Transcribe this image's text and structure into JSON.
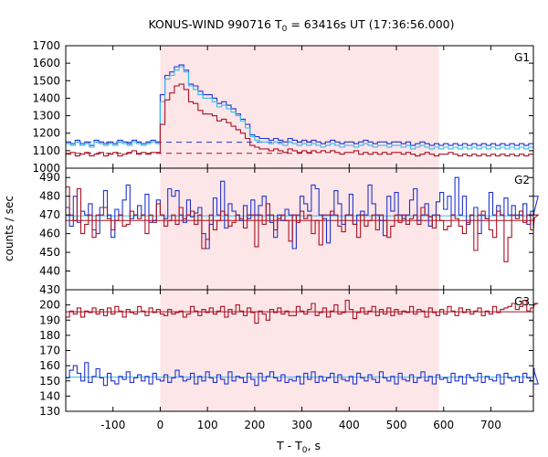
{
  "figure": {
    "title_parts": [
      "KONUS-WIND 990716 T",
      "0",
      " = 63416s UT (17:36:56.000)"
    ],
    "ylabel": "counts / sec",
    "xlabel_parts": [
      "T - T",
      "0",
      ", s"
    ]
  },
  "chart_data": {
    "type": "line",
    "title": "KONUS-WIND 990716 T0 = 63416s UT (17:36:56.000)",
    "xlabel": "T - T0, s",
    "ylabel": "counts / sec",
    "xlim": [
      -200,
      790
    ],
    "x_ticks": [
      -100,
      0,
      100,
      200,
      300,
      400,
      500,
      600,
      700
    ],
    "x_tick_labels": [
      "-100",
      "0",
      "100",
      "200",
      "300",
      "400",
      "500",
      "600",
      "700"
    ],
    "shaded_interval": [
      0,
      590
    ],
    "colors": {
      "red": "#aa1122",
      "blue": "#2233cc",
      "cyan": "#33bbee",
      "shade": "#fde6e8"
    },
    "panels": [
      {
        "label": "G1",
        "ylim": [
          1000,
          1700
        ],
        "y_ticks": [
          1000,
          1100,
          1200,
          1300,
          1400,
          1500,
          1600,
          1700
        ],
        "y_tick_labels": [
          "1000",
          "1100",
          "1200",
          "1300",
          "1400",
          "1500",
          "1600",
          "1700"
        ],
        "step_series": [
          {
            "color": "blue",
            "bin": 10,
            "x0": -200,
            "values": [
              1150,
              1140,
              1160,
              1140,
              1150,
              1130,
              1160,
              1150,
              1140,
              1150,
              1140,
              1160,
              1150,
              1140,
              1160,
              1150,
              1140,
              1150,
              1160,
              1150,
              1420,
              1530,
              1550,
              1580,
              1590,
              1560,
              1480,
              1470,
              1440,
              1420,
              1420,
              1400,
              1370,
              1380,
              1360,
              1340,
              1310,
              1280,
              1250,
              1190,
              1180,
              1170,
              1170,
              1160,
              1170,
              1160,
              1150,
              1170,
              1160,
              1150,
              1160,
              1150,
              1160,
              1150,
              1140,
              1150,
              1160,
              1150,
              1140,
              1150,
              1150,
              1140,
              1150,
              1160,
              1150,
              1140,
              1150,
              1150,
              1140,
              1150,
              1150,
              1140,
              1150,
              1130,
              1140,
              1150,
              1140,
              1130,
              1140,
              1130,
              1140,
              1130,
              1140,
              1130,
              1140,
              1130,
              1140,
              1130,
              1140,
              1130,
              1140,
              1130,
              1140,
              1130,
              1140,
              1130,
              1140,
              1130,
              1140
            ]
          },
          {
            "color": "cyan",
            "bin": 10,
            "x0": -200,
            "values": [
              1140,
              1130,
              1150,
              1130,
              1140,
              1120,
              1150,
              1140,
              1130,
              1140,
              1130,
              1150,
              1140,
              1130,
              1150,
              1140,
              1130,
              1140,
              1150,
              1140,
              1380,
              1510,
              1530,
              1560,
              1580,
              1550,
              1470,
              1450,
              1420,
              1400,
              1400,
              1380,
              1350,
              1360,
              1340,
              1320,
              1300,
              1270,
              1230,
              1180,
              1160,
              1150,
              1150,
              1140,
              1150,
              1140,
              1130,
              1150,
              1140,
              1130,
              1140,
              1130,
              1140,
              1130,
              1120,
              1130,
              1140,
              1130,
              1120,
              1130,
              1130,
              1120,
              1130,
              1140,
              1130,
              1120,
              1130,
              1130,
              1120,
              1130,
              1130,
              1120,
              1130,
              1110,
              1120,
              1130,
              1120,
              1110,
              1120,
              1110,
              1120,
              1110,
              1120,
              1110,
              1120,
              1110,
              1120,
              1110,
              1120,
              1110,
              1120,
              1110,
              1120,
              1110,
              1120,
              1110,
              1120,
              1110,
              1120
            ]
          },
          {
            "color": "red",
            "bin": 10,
            "x0": -200,
            "values": [
              1080,
              1090,
              1070,
              1080,
              1090,
              1070,
              1080,
              1090,
              1070,
              1080,
              1090,
              1070,
              1080,
              1090,
              1100,
              1080,
              1090,
              1080,
              1090,
              1090,
              1250,
              1390,
              1430,
              1470,
              1480,
              1450,
              1380,
              1370,
              1330,
              1310,
              1310,
              1300,
              1270,
              1280,
              1260,
              1240,
              1220,
              1200,
              1170,
              1130,
              1120,
              1110,
              1110,
              1100,
              1110,
              1100,
              1090,
              1110,
              1100,
              1090,
              1100,
              1090,
              1100,
              1090,
              1100,
              1090,
              1100,
              1090,
              1080,
              1090,
              1090,
              1100,
              1080,
              1090,
              1080,
              1090,
              1080,
              1090,
              1080,
              1090,
              1090,
              1080,
              1090,
              1080,
              1070,
              1080,
              1090,
              1080,
              1070,
              1080,
              1080,
              1090,
              1080,
              1070,
              1080,
              1070,
              1080,
              1070,
              1080,
              1070,
              1080,
              1070,
              1080,
              1070,
              1080,
              1070,
              1080,
              1070,
              1080
            ]
          }
        ],
        "level_lines": [
          {
            "color": "blue",
            "y": 1148,
            "dashed": true,
            "x_range": [
              -200,
              330
            ]
          },
          {
            "color": "red",
            "y": 1085,
            "dashed": true,
            "x_range": [
              -200,
              330
            ]
          }
        ]
      },
      {
        "label": "G2",
        "ylim": [
          430,
          495
        ],
        "y_ticks": [
          430,
          440,
          450,
          460,
          470,
          480,
          490
        ],
        "y_tick_labels": [
          "430",
          "440",
          "450",
          "460",
          "470",
          "480",
          "490"
        ],
        "step_series": [
          {
            "color": "blue",
            "bin": 8,
            "x0": -200,
            "values": [
              474,
              464,
              480,
              466,
              472,
              470,
              476,
              462,
              460,
              474,
              483,
              470,
              458,
              473,
              470,
              478,
              486,
              468,
              470,
              475,
              470,
              481,
              466,
              467,
              478,
              470,
              468,
              484,
              480,
              483,
              470,
              466,
              478,
              469,
              471,
              474,
              460,
              452,
              465,
              479,
              470,
              488,
              463,
              476,
              472,
              470,
              467,
              475,
              468,
              478,
              470,
              475,
              480,
              470,
              466,
              458,
              470,
              467,
              473,
              470,
              452,
              470,
              480,
              476,
              472,
              486,
              484,
              470,
              468,
              455,
              470,
              483,
              476,
              465,
              470,
              481,
              465,
              470,
              472,
              470,
              486,
              476,
              470,
              467,
              459,
              480,
              472,
              482,
              470,
              468,
              470,
              478,
              484,
              467,
              470,
              476,
              464,
              470,
              477,
              482,
              473,
              480,
              470,
              490,
              470,
              480,
              465,
              470,
              474,
              460,
              470,
              468,
              482,
              470,
              475,
              470,
              479,
              470,
              475,
              470,
              470,
              476,
              465,
              472,
              470,
              480
            ]
          },
          {
            "color": "red",
            "bin": 8,
            "x0": -200,
            "values": [
              485,
              470,
              467,
              484,
              460,
              465,
              470,
              458,
              470,
              470,
              474,
              468,
              462,
              467,
              470,
              464,
              465,
              472,
              470,
              468,
              470,
              460,
              470,
              466,
              476,
              470,
              464,
              467,
              470,
              465,
              474,
              468,
              470,
              472,
              465,
              470,
              452,
              457,
              470,
              462,
              467,
              472,
              470,
              464,
              466,
              470,
              468,
              463,
              470,
              470,
              453,
              470,
              465,
              476,
              470,
              462,
              468,
              470,
              467,
              456,
              470,
              466,
              472,
              468,
              470,
              460,
              467,
              454,
              470,
              470,
              472,
              470,
              464,
              461,
              470,
              470,
              465,
              458,
              470,
              464,
              467,
              470,
              462,
              470,
              467,
              458,
              464,
              470,
              466,
              470,
              465,
              468,
              470,
              465,
              474,
              470,
              469,
              463,
              470,
              467,
              462,
              464,
              470,
              468,
              464,
              460,
              466,
              470,
              451,
              470,
              472,
              468,
              462,
              458,
              472,
              470,
              445,
              458,
              470,
              468,
              472,
              466,
              470,
              462,
              468,
              470
            ]
          }
        ],
        "level_lines": [
          {
            "color": "cyan",
            "y": 469.5,
            "dashed": false,
            "x_range": [
              -200,
              790
            ]
          },
          {
            "color": "red",
            "y": 467,
            "dashed": false,
            "x_range": [
              -200,
              790
            ]
          }
        ]
      },
      {
        "label": "G3",
        "ylim": [
          130,
          210
        ],
        "y_ticks": [
          130,
          140,
          150,
          160,
          170,
          180,
          190,
          200,
          210
        ],
        "y_tick_labels": [
          "130",
          "140",
          "150",
          "160",
          "170",
          "180",
          "190",
          "200"
        ],
        "step_series": [
          {
            "color": "red",
            "bin": 8,
            "x0": -200,
            "values": [
              192,
              196,
              194,
              198,
              192,
              196,
              195,
              198,
              194,
              197,
              193,
              198,
              194,
              199,
              196,
              192,
              197,
              195,
              194,
              199,
              196,
              193,
              198,
              195,
              197,
              194,
              193,
              197,
              194,
              195,
              196,
              192,
              194,
              199,
              196,
              193,
              197,
              195,
              198,
              194,
              196,
              199,
              192,
              197,
              194,
              200,
              196,
              193,
              198,
              195,
              188,
              196,
              194,
              190,
              197,
              195,
              198,
              194,
              196,
              193,
              193,
              199,
              196,
              194,
              197,
              201,
              193,
              195,
              198,
              192,
              196,
              200,
              194,
              195,
              203,
              197,
              191,
              195,
              198,
              194,
              196,
              199,
              193,
              197,
              194,
              198,
              193,
              197,
              194,
              196,
              195,
              199,
              194,
              197,
              196,
              192,
              198,
              195,
              193,
              197,
              194,
              199,
              196,
              193,
              198,
              195,
              197,
              194,
              196,
              198,
              193,
              196,
              194,
              199,
              195,
              197,
              198,
              199,
              201,
              197,
              199,
              203,
              196,
              198,
              200,
              201
            ]
          },
          {
            "color": "blue",
            "bin": 8,
            "x0": -200,
            "values": [
              152,
              157,
              160,
              155,
              150,
              162,
              149,
              153,
              158,
              152,
              147,
              155,
              150,
              148,
              153,
              151,
              156,
              149,
              152,
              154,
              150,
              153,
              148,
              155,
              151,
              150,
              154,
              149,
              152,
              157,
              153,
              150,
              151,
              155,
              148,
              153,
              150,
              156,
              152,
              149,
              154,
              151,
              148,
              156,
              150,
              153,
              152,
              149,
              155,
              151,
              147,
              155,
              150,
              153,
              156,
              152,
              150,
              154,
              149,
              151,
              150,
              153,
              148,
              155,
              151,
              156,
              149,
              153,
              150,
              152,
              155,
              149,
              154,
              151,
              150,
              153,
              148,
              155,
              152,
              150,
              154,
              151,
              149,
              156,
              152,
              150,
              153,
              148,
              155,
              151,
              150,
              154,
              149,
              152,
              156,
              150,
              153,
              148,
              154,
              151,
              152,
              149,
              155,
              150,
              153,
              148,
              154,
              152,
              150,
              155,
              149,
              153,
              151,
              150,
              154,
              148,
              155,
              152,
              150,
              153,
              149,
              155,
              152,
              150,
              158,
              148
            ]
          }
        ],
        "level_lines": [
          {
            "color": "red",
            "y": 195.5,
            "dashed": false,
            "x_range": [
              -200,
              790
            ]
          },
          {
            "color": "cyan",
            "y": 152.5,
            "dashed": false,
            "x_range": [
              -200,
              790
            ]
          }
        ]
      }
    ]
  }
}
